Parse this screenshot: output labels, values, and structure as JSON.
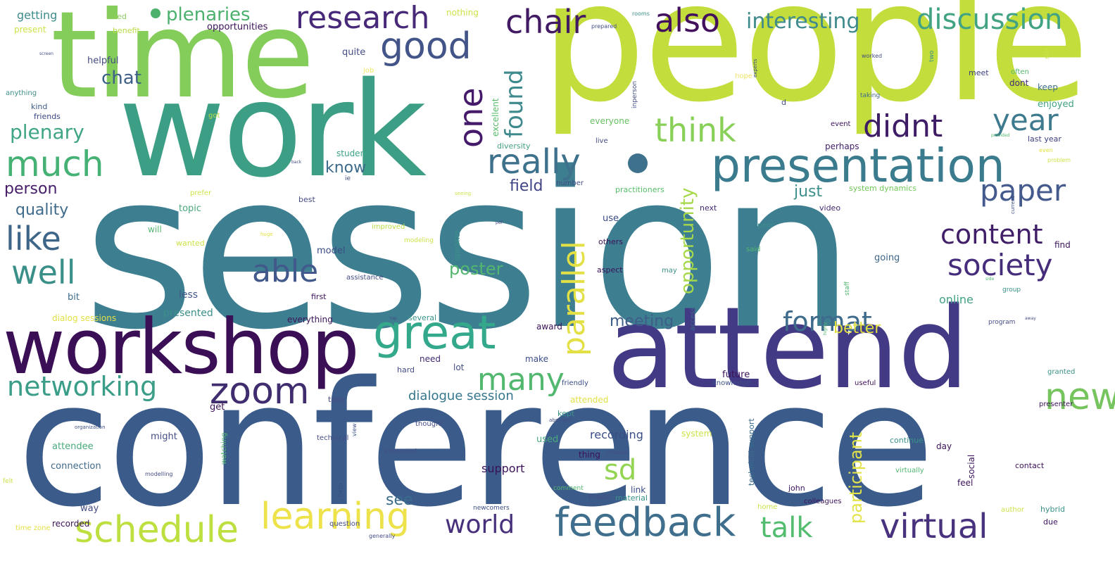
{
  "words": [
    {
      "text": "session",
      "color": "#3d7f91"
    },
    {
      "text": "conference",
      "color": "#3b5c8b"
    },
    {
      "text": "people",
      "color": "#c3dd3c"
    },
    {
      "text": "work",
      "color": "#3c9e85"
    },
    {
      "text": "time",
      "color": "#85cd5a"
    },
    {
      "text": "attend",
      "color": "#433a85"
    },
    {
      "text": "workshop",
      "color": "#3b0f55"
    },
    {
      "text": "presentation",
      "color": "#3a7b8e"
    },
    {
      "text": "great",
      "color": "#33a88a"
    },
    {
      "text": "feedback",
      "color": "#3f6f8c"
    },
    {
      "text": "schedule",
      "color": "#bde040"
    },
    {
      "text": "learning",
      "color": "#ede24a"
    },
    {
      "text": "zoom",
      "color": "#3f2d6f"
    },
    {
      "text": "good",
      "color": "#435588"
    },
    {
      "text": "research",
      "color": "#482878"
    },
    {
      "text": "chair",
      "color": "#421a63"
    },
    {
      "text": "also",
      "color": "#43105e"
    },
    {
      "text": "discussion",
      "color": "#41a384"
    },
    {
      "text": "interesting",
      "color": "#3f8a8c"
    },
    {
      "text": "plenaries",
      "color": "#4bb16d"
    },
    {
      "text": "really",
      "color": "#3e718c"
    },
    {
      "text": "think",
      "color": "#88d058"
    },
    {
      "text": "didnt",
      "color": "#3f1d66"
    },
    {
      "text": "year",
      "color": "#3d7a8d"
    },
    {
      "text": "much",
      "color": "#45b175"
    },
    {
      "text": "like",
      "color": "#3d6588"
    },
    {
      "text": "well",
      "color": "#3a9088"
    },
    {
      "text": "able",
      "color": "#42598b"
    },
    {
      "text": "networking",
      "color": "#3a9d87"
    },
    {
      "text": "many",
      "color": "#52b86f"
    },
    {
      "text": "sd",
      "color": "#93d452"
    },
    {
      "text": "world",
      "color": "#47307c"
    },
    {
      "text": "talk",
      "color": "#52bd6e"
    },
    {
      "text": "virtual",
      "color": "#48327e"
    },
    {
      "text": "format",
      "color": "#3e6a8b"
    },
    {
      "text": "paper",
      "color": "#44598c"
    },
    {
      "text": "content",
      "color": "#411e68"
    },
    {
      "text": "society",
      "color": "#462d7b"
    },
    {
      "text": "new",
      "color": "#76c45e"
    },
    {
      "text": "one",
      "color": "#461a6b"
    },
    {
      "text": "found",
      "color": "#3f8a8c"
    },
    {
      "text": "parallel",
      "color": "#e3e046"
    },
    {
      "text": "opportunity",
      "color": "#a6d84a"
    },
    {
      "text": "participant",
      "color": "#e3e34a"
    },
    {
      "text": "plenary",
      "color": "#40a586"
    },
    {
      "text": "chat",
      "color": "#3e6088"
    },
    {
      "text": "person",
      "color": "#461d68"
    },
    {
      "text": "quality",
      "color": "#3e6a8b"
    },
    {
      "text": "know",
      "color": "#3c6b8b"
    },
    {
      "text": "field",
      "color": "#414487"
    },
    {
      "text": "just",
      "color": "#3c8f8a"
    },
    {
      "text": "poster",
      "color": "#53b66f"
    },
    {
      "text": "meeting",
      "color": "#3e5e89"
    },
    {
      "text": "better",
      "color": "#e0dd40"
    },
    {
      "text": "dialogue session",
      "color": "#35778c"
    },
    {
      "text": "see",
      "color": "#3a6c8b"
    },
    {
      "text": "support",
      "color": "#3b1258"
    },
    {
      "text": "recording",
      "color": "#3a4d86"
    },
    {
      "text": "online",
      "color": "#42a085"
    },
    {
      "text": "getting",
      "color": "#3e8c8c"
    },
    {
      "text": "present",
      "color": "#cfe24a"
    },
    {
      "text": "liked",
      "color": "#8ccc5c"
    },
    {
      "text": "benefit",
      "color": "#b9dc46"
    },
    {
      "text": "nothing",
      "color": "#cfe24a"
    },
    {
      "text": "opportunities",
      "color": "#3b1258"
    },
    {
      "text": "quite",
      "color": "#444d84"
    },
    {
      "text": "helpful",
      "color": "#454d83"
    },
    {
      "text": "job",
      "color": "#f0e66a"
    },
    {
      "text": "anything",
      "color": "#3d8f8a"
    },
    {
      "text": "kind",
      "color": "#3b5c8b"
    },
    {
      "text": "friends",
      "color": "#3a4685"
    },
    {
      "text": "got",
      "color": "#b9dc46"
    },
    {
      "text": "excellent",
      "color": "#58bd6a"
    },
    {
      "text": "diversity",
      "color": "#44a282"
    },
    {
      "text": "student",
      "color": "#3aa287"
    },
    {
      "text": "everyone",
      "color": "#68c061"
    },
    {
      "text": "enjoyed",
      "color": "#43a283"
    },
    {
      "text": "keep",
      "color": "#3f6f8c"
    },
    {
      "text": "dont",
      "color": "#412b72"
    },
    {
      "text": "meet",
      "color": "#3d3f80"
    },
    {
      "text": "often",
      "color": "#53b66f"
    },
    {
      "text": "hope",
      "color": "#efe36a"
    },
    {
      "text": "perhaps",
      "color": "#411e68"
    },
    {
      "text": "last year",
      "color": "#3d3f80"
    },
    {
      "text": "event",
      "color": "#3b1258"
    },
    {
      "text": "taking",
      "color": "#3e6a8b"
    },
    {
      "text": "live",
      "color": "#454d83"
    },
    {
      "text": "system dynamics",
      "color": "#72c65a"
    },
    {
      "text": "prefer",
      "color": "#cfe24a"
    },
    {
      "text": "best",
      "color": "#454d83"
    },
    {
      "text": "practitioners",
      "color": "#58bd6a"
    },
    {
      "text": "number",
      "color": "#444d84"
    },
    {
      "text": "video",
      "color": "#412b72"
    },
    {
      "text": "next",
      "color": "#412b72"
    },
    {
      "text": "find",
      "color": "#3b1258"
    },
    {
      "text": "topic",
      "color": "#4aa97c"
    },
    {
      "text": "will",
      "color": "#53b66f"
    },
    {
      "text": "wanted",
      "color": "#cfe24a"
    },
    {
      "text": "improved",
      "color": "#b9dc46"
    },
    {
      "text": "modeling",
      "color": "#cfe24a"
    },
    {
      "text": "model",
      "color": "#3a4d86"
    },
    {
      "text": "use",
      "color": "#3a4d86"
    },
    {
      "text": "others",
      "color": "#3b1258"
    },
    {
      "text": "aspect",
      "color": "#3b1258"
    },
    {
      "text": "going",
      "color": "#3d6588"
    },
    {
      "text": "said",
      "color": "#53b66f"
    },
    {
      "text": "peer",
      "color": "#3e8c8c"
    },
    {
      "text": "may",
      "color": "#3a9088"
    },
    {
      "text": "bit",
      "color": "#3a6c8b"
    },
    {
      "text": "less",
      "color": "#44598c"
    },
    {
      "text": "presented",
      "color": "#3a9088"
    },
    {
      "text": "dialog sessions",
      "color": "#e3e046"
    },
    {
      "text": "first",
      "color": "#3b1258"
    },
    {
      "text": "several",
      "color": "#3a9088"
    },
    {
      "text": "everything",
      "color": "#3b1258"
    },
    {
      "text": "award",
      "color": "#3b1258"
    },
    {
      "text": "assistance",
      "color": "#444d84"
    },
    {
      "text": "need",
      "color": "#412b72"
    },
    {
      "text": "make",
      "color": "#3a4d86"
    },
    {
      "text": "lot",
      "color": "#444d84"
    },
    {
      "text": "hard",
      "color": "#444d84"
    },
    {
      "text": "future",
      "color": "#3b1258"
    },
    {
      "text": "knowledge",
      "color": "#3a4d86"
    },
    {
      "text": "useful",
      "color": "#3b1258"
    },
    {
      "text": "granted",
      "color": "#3a9088"
    },
    {
      "text": "presenter",
      "color": "#3b1258"
    },
    {
      "text": "friendly",
      "color": "#3a4d86"
    },
    {
      "text": "take",
      "color": "#444d84"
    },
    {
      "text": "get",
      "color": "#3b1258"
    },
    {
      "text": "attended",
      "color": "#e3e046"
    },
    {
      "text": "kept",
      "color": "#3a9088"
    },
    {
      "text": "thought",
      "color": "#444d84"
    },
    {
      "text": "technical",
      "color": "#444d84"
    },
    {
      "text": "interested",
      "color": "#444d84"
    },
    {
      "text": "might",
      "color": "#444d84"
    },
    {
      "text": "attendee",
      "color": "#4aa97c"
    },
    {
      "text": "connection",
      "color": "#3e6a8b"
    },
    {
      "text": "way",
      "color": "#444d84"
    },
    {
      "text": "recorded",
      "color": "#3b1258"
    },
    {
      "text": "used",
      "color": "#4aa97c"
    },
    {
      "text": "thing",
      "color": "#3b1258"
    },
    {
      "text": "link",
      "color": "#3a4d86"
    },
    {
      "text": "made",
      "color": "#444d84"
    },
    {
      "text": "material",
      "color": "#3a9088"
    },
    {
      "text": "system",
      "color": "#cfe24a"
    },
    {
      "text": "continue",
      "color": "#3a9088"
    },
    {
      "text": "virtually",
      "color": "#53b66f"
    },
    {
      "text": "day",
      "color": "#3b1258"
    },
    {
      "text": "social",
      "color": "#3b1258"
    },
    {
      "text": "contact",
      "color": "#3b1258"
    },
    {
      "text": "feel",
      "color": "#3b1258"
    },
    {
      "text": "john",
      "color": "#3b1258"
    },
    {
      "text": "colleagues",
      "color": "#3b1258"
    },
    {
      "text": "hybrid",
      "color": "#3a9088"
    },
    {
      "text": "author",
      "color": "#cfe24a"
    },
    {
      "text": "due",
      "color": "#3b1258"
    },
    {
      "text": "home",
      "color": "#cfe24a"
    },
    {
      "text": "newcomers",
      "color": "#3a4d86"
    },
    {
      "text": "comment",
      "color": "#53b66f"
    },
    {
      "text": "question",
      "color": "#444d84"
    },
    {
      "text": "generally",
      "color": "#444d84"
    },
    {
      "text": "time zone",
      "color": "#e3e046"
    },
    {
      "text": "felt",
      "color": "#cfe24a"
    },
    {
      "text": "modelling",
      "color": "#444d84"
    },
    {
      "text": "organization",
      "color": "#3a4d86"
    },
    {
      "text": "help",
      "color": "#3a4d86"
    },
    {
      "text": "watching",
      "color": "#53b66f"
    },
    {
      "text": "view",
      "color": "#3a4d86"
    },
    {
      "text": "access",
      "color": "#3a6c8b"
    },
    {
      "text": "speaker",
      "color": "#3a9088"
    },
    {
      "text": "technical support",
      "color": "#3a6c8b"
    },
    {
      "text": "inperson",
      "color": "#444d84"
    },
    {
      "text": "experts",
      "color": "#3a4d86"
    },
    {
      "text": "two",
      "color": "#3a9088"
    },
    {
      "text": "still",
      "color": "#cfe24a"
    },
    {
      "text": "staff",
      "color": "#53b66f"
    },
    {
      "text": "program",
      "color": "#444d84"
    },
    {
      "text": "group",
      "color": "#3a9088"
    },
    {
      "text": "even",
      "color": "#e3e046"
    },
    {
      "text": "provided",
      "color": "#53b66f"
    },
    {
      "text": "problem",
      "color": "#cfe24a"
    },
    {
      "text": "current",
      "color": "#3a4d86"
    },
    {
      "text": "abstracts",
      "color": "#444d84"
    },
    {
      "text": "effective",
      "color": "#444d84"
    },
    {
      "text": "worked",
      "color": "#444d84"
    },
    {
      "text": "prepared",
      "color": "#444d84"
    },
    {
      "text": "rooms",
      "color": "#3a9088"
    },
    {
      "text": "seeing",
      "color": "#cfe24a"
    },
    {
      "text": "pdf",
      "color": "#444d84"
    },
    {
      "text": "back",
      "color": "#444d84"
    },
    {
      "text": "huge",
      "color": "#e3e046"
    },
    {
      "text": "screen",
      "color": "#444d84"
    },
    {
      "text": "d",
      "color": "#444d84"
    },
    {
      "text": "top",
      "color": "#444d84"
    },
    {
      "text": "away",
      "color": "#444d84"
    },
    {
      "text": "highly",
      "color": "#53b66f"
    },
    {
      "text": "side",
      "color": "#53b66f"
    },
    {
      "text": "ie",
      "color": "#444d84"
    }
  ]
}
